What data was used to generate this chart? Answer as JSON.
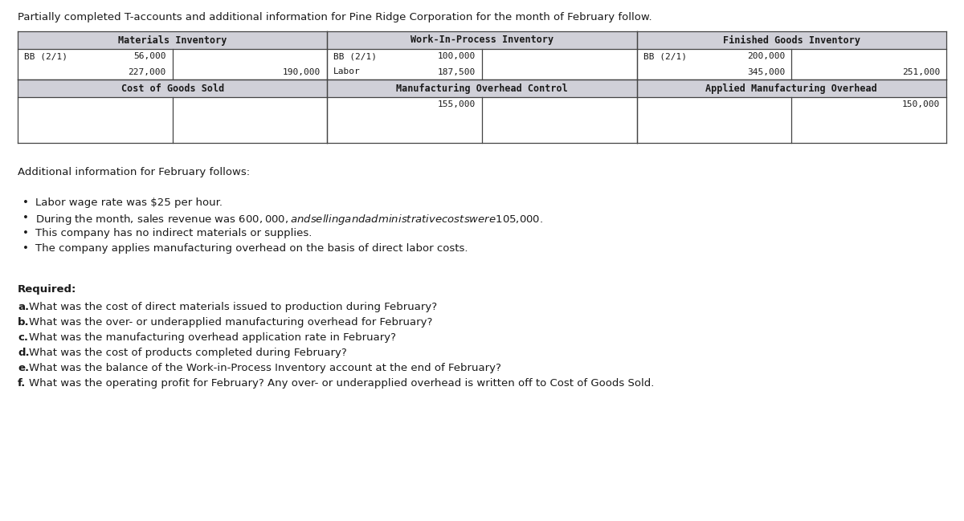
{
  "title": "Partially completed T-accounts and additional information for Pine Ridge Corporation for the month of February follow.",
  "background_color": "#ffffff",
  "t_accounts": [
    {
      "header": "Materials Inventory",
      "left_entries": [
        {
          "label": "BB (2/1)",
          "value": "56,000"
        },
        {
          "label": "",
          "value": "227,000"
        }
      ],
      "right_entries": [
        {
          "label": "",
          "value": ""
        },
        {
          "label": "",
          "value": "190,000"
        }
      ],
      "extra_rows": 0
    },
    {
      "header": "Work-In-Process Inventory",
      "left_entries": [
        {
          "label": "BB (2/1)",
          "value": "100,000"
        },
        {
          "label": "Labor",
          "value": "187,500"
        }
      ],
      "right_entries": [
        {
          "label": "",
          "value": ""
        },
        {
          "label": "",
          "value": ""
        }
      ],
      "extra_rows": 0
    },
    {
      "header": "Finished Goods Inventory",
      "left_entries": [
        {
          "label": "BB (2/1)",
          "value": "200,000"
        },
        {
          "label": "",
          "value": "345,000"
        }
      ],
      "right_entries": [
        {
          "label": "",
          "value": ""
        },
        {
          "label": "",
          "value": "251,000"
        }
      ],
      "extra_rows": 0
    },
    {
      "header": "Cost of Goods Sold",
      "left_entries": [
        {
          "label": "",
          "value": ""
        }
      ],
      "right_entries": [
        {
          "label": "",
          "value": ""
        }
      ],
      "extra_rows": 2
    },
    {
      "header": "Manufacturing Overhead Control",
      "left_entries": [
        {
          "label": "",
          "value": "155,000"
        }
      ],
      "right_entries": [
        {
          "label": "",
          "value": ""
        }
      ],
      "extra_rows": 2
    },
    {
      "header": "Applied Manufacturing Overhead",
      "left_entries": [
        {
          "label": "",
          "value": ""
        }
      ],
      "right_entries": [
        {
          "label": "",
          "value": "150,000"
        }
      ],
      "extra_rows": 2
    }
  ],
  "additional_info_header": "Additional information for February follows:",
  "bullet_points": [
    "Labor wage rate was $25 per hour.",
    "During the month, sales revenue was $600,000, and selling and administrative costs were $105,000.",
    "This company has no indirect materials or supplies.",
    "The company applies manufacturing overhead on the basis of direct labor costs."
  ],
  "required_header": "Required:",
  "required_items": [
    {
      "label": "a.",
      "text": "What was the cost of direct materials issued to production during February?"
    },
    {
      "label": "b.",
      "text": "What was the over- or underapplied manufacturing overhead for February?"
    },
    {
      "label": "c.",
      "text": "What was the manufacturing overhead application rate in February?"
    },
    {
      "label": "d.",
      "text": "What was the cost of products completed during February?"
    },
    {
      "label": "e.",
      "text": "What was the balance of the Work-in-Process Inventory account at the end of February?"
    },
    {
      "label": "f.",
      "text": "What was the operating profit for February? Any over- or underapplied overhead is written off to Cost of Goods Sold."
    }
  ],
  "header_bg": "#d0d0d8",
  "text_color": "#1a1a1a",
  "border_color": "#444444",
  "monospace_font": "DejaVu Sans Mono",
  "body_font": "DejaVu Sans",
  "t_font_size": 8.5,
  "body_font_size": 9.5
}
